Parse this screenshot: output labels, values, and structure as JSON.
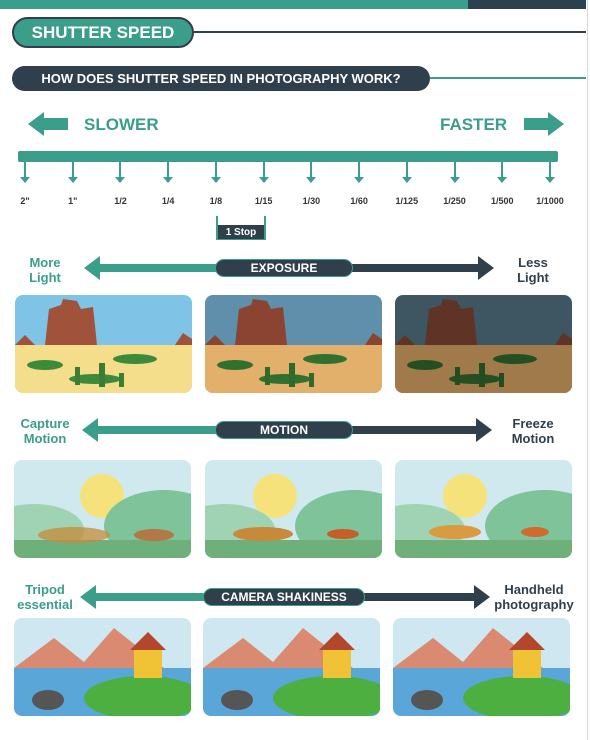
{
  "header": {
    "title": "SHUTTER SPEED",
    "subtitle": "HOW DOES SHUTTER SPEED IN PHOTOGRAPHY WORK?"
  },
  "scale": {
    "left_label": "SLOWER",
    "right_label": "FASTER",
    "ticks": [
      "2\"",
      "1\"",
      "1/2",
      "1/4",
      "1/8",
      "1/15",
      "1/30",
      "1/60",
      "1/125",
      "1/250",
      "1/500",
      "1/1000"
    ],
    "stop_label": "1 Stop"
  },
  "rows": {
    "exposure": {
      "left_line1": "More",
      "left_line2": "Light",
      "center": "EXPOSURE",
      "right_line1": "Less",
      "right_line2": "Light"
    },
    "motion": {
      "left_line1": "Capture",
      "left_line2": "Motion",
      "center": "MOTION",
      "right_line1": "Freeze",
      "right_line2": "Motion"
    },
    "shakiness": {
      "left_line1": "Tripod",
      "left_line2": "essential",
      "center": "CAMERA SHAKINESS",
      "right_line1": "Handheld",
      "right_line2": "photography"
    }
  },
  "colors": {
    "teal": "#3a9e8a",
    "navy": "#2f3f4b"
  },
  "icons": [
    "left-arrow-icon",
    "right-arrow-icon",
    "double-arrow-icon"
  ]
}
